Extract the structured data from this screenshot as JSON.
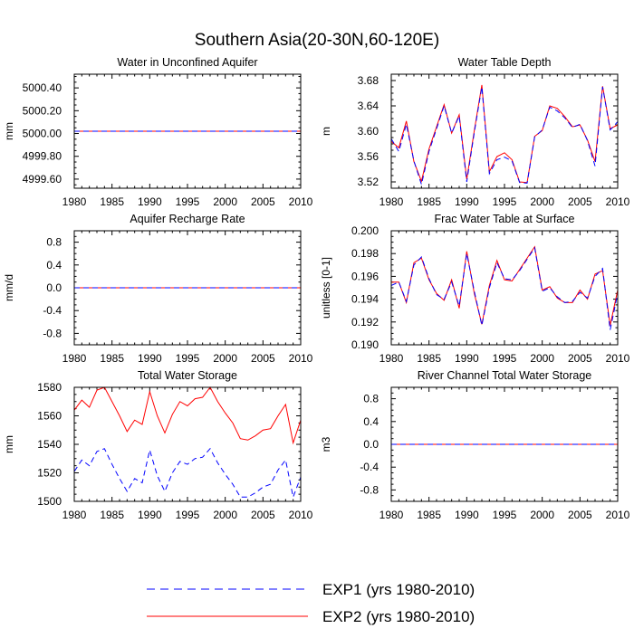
{
  "title": "Southern Asia(20-30N,60-120E)",
  "legend": {
    "exp1": {
      "label": "EXP1 (yrs 1980-2010)",
      "color": "#0000ff"
    },
    "exp2": {
      "label": "EXP2 (yrs 1980-2010)",
      "color": "#ff0000"
    }
  },
  "years": [
    1980,
    1981,
    1982,
    1983,
    1984,
    1985,
    1986,
    1987,
    1988,
    1989,
    1990,
    1991,
    1992,
    1993,
    1994,
    1995,
    1996,
    1997,
    1998,
    1999,
    2000,
    2001,
    2002,
    2003,
    2004,
    2005,
    2006,
    2007,
    2008,
    2009,
    2010
  ],
  "chart_data": [
    {
      "type": "line",
      "title": "Water in Unconfined Aquifer",
      "ylabel": "mm",
      "xlim": [
        1980,
        2010
      ],
      "ylim": [
        4999.52,
        5000.52
      ],
      "yticks": [
        4999.6,
        4999.8,
        5000.0,
        5000.2,
        5000.4
      ],
      "ytick_labels": [
        "4999.60",
        "4999.80",
        "5000.00",
        "5000.20",
        "5000.40"
      ],
      "xticks": [
        1980,
        1985,
        1990,
        1995,
        2000,
        2005,
        2010
      ],
      "series": [
        {
          "name": "EXP1",
          "constant": 5000.02
        },
        {
          "name": "EXP2",
          "constant": 5000.02
        }
      ]
    },
    {
      "type": "line",
      "title": "Water Table Depth",
      "ylabel": "m",
      "xlim": [
        1980,
        2010
      ],
      "ylim": [
        3.51,
        3.69
      ],
      "yticks": [
        3.52,
        3.56,
        3.6,
        3.64,
        3.68
      ],
      "ytick_labels": [
        "3.52",
        "3.56",
        "3.60",
        "3.64",
        "3.68"
      ],
      "xticks": [
        1980,
        1985,
        1990,
        1995,
        2000,
        2005,
        2010
      ],
      "series": [
        {
          "name": "EXP1",
          "values": [
            3.588,
            3.568,
            3.611,
            3.553,
            3.516,
            3.568,
            3.604,
            3.64,
            3.597,
            3.624,
            3.52,
            3.598,
            3.67,
            3.533,
            3.555,
            3.559,
            3.553,
            3.519,
            3.518,
            3.591,
            3.602,
            3.638,
            3.632,
            3.621,
            3.606,
            3.611,
            3.585,
            3.545,
            3.67,
            3.602,
            3.615
          ]
        },
        {
          "name": "EXP2",
          "values": [
            3.584,
            3.574,
            3.616,
            3.552,
            3.521,
            3.572,
            3.607,
            3.642,
            3.597,
            3.626,
            3.524,
            3.601,
            3.673,
            3.536,
            3.56,
            3.566,
            3.555,
            3.52,
            3.519,
            3.592,
            3.601,
            3.64,
            3.636,
            3.623,
            3.607,
            3.61,
            3.586,
            3.552,
            3.671,
            3.604,
            3.61
          ]
        }
      ]
    },
    {
      "type": "line",
      "title": "Aquifer Recharge Rate",
      "ylabel": "mm/d",
      "xlim": [
        1980,
        2010
      ],
      "ylim": [
        -1.0,
        1.0
      ],
      "yticks": [
        -0.8,
        -0.4,
        0.0,
        0.4,
        0.8
      ],
      "ytick_labels": [
        "-0.8",
        "-0.4",
        "0.0",
        "0.4",
        "0.8"
      ],
      "xticks": [
        1980,
        1985,
        1990,
        1995,
        2000,
        2005,
        2010
      ],
      "series": [
        {
          "name": "EXP1",
          "constant": 0.0
        },
        {
          "name": "EXP2",
          "constant": 0.0
        }
      ]
    },
    {
      "type": "line",
      "title": "Frac Water Table at Surface",
      "ylabel": "unitless [0-1]",
      "xlim": [
        1980,
        2010
      ],
      "ylim": [
        0.19,
        0.2
      ],
      "yticks": [
        0.19,
        0.192,
        0.194,
        0.196,
        0.198,
        0.2
      ],
      "ytick_labels": [
        "0.190",
        "0.192",
        "0.194",
        "0.196",
        "0.198",
        "0.200"
      ],
      "xticks": [
        1980,
        1985,
        1990,
        1995,
        2000,
        2005,
        2010
      ],
      "series": [
        {
          "name": "EXP1",
          "values": [
            0.1952,
            0.1955,
            0.1938,
            0.197,
            0.1977,
            0.1958,
            0.1944,
            0.194,
            0.1955,
            0.1934,
            0.198,
            0.1947,
            0.1917,
            0.195,
            0.1972,
            0.1958,
            0.1957,
            0.1965,
            0.1975,
            0.1985,
            0.1947,
            0.195,
            0.1942,
            0.1937,
            0.1938,
            0.1946,
            0.1941,
            0.196,
            0.1967,
            0.1913,
            0.1945
          ]
        },
        {
          "name": "EXP2",
          "values": [
            0.1955,
            0.1955,
            0.1937,
            0.1972,
            0.1976,
            0.1957,
            0.1945,
            0.1939,
            0.1957,
            0.1932,
            0.1982,
            0.1945,
            0.1918,
            0.1952,
            0.1974,
            0.1957,
            0.1956,
            0.1966,
            0.1976,
            0.1986,
            0.1948,
            0.1951,
            0.1941,
            0.1937,
            0.1937,
            0.1948,
            0.194,
            0.1962,
            0.1965,
            0.1917,
            0.1948
          ]
        }
      ]
    },
    {
      "type": "line",
      "title": "Total Water Storage",
      "ylabel": "mm",
      "xlim": [
        1980,
        2010
      ],
      "ylim": [
        1500,
        1580
      ],
      "yticks": [
        1500,
        1520,
        1540,
        1560,
        1580
      ],
      "ytick_labels": [
        "1500",
        "1520",
        "1540",
        "1560",
        "1580"
      ],
      "xticks": [
        1980,
        1985,
        1990,
        1995,
        2000,
        2005,
        2010
      ],
      "series": [
        {
          "name": "EXP1",
          "values": [
            1521,
            1529,
            1525,
            1535,
            1537,
            1526,
            1516,
            1507,
            1516,
            1513,
            1536,
            1518,
            1507,
            1520,
            1528,
            1526,
            1530,
            1531,
            1537,
            1527,
            1519,
            1512,
            1503,
            1503,
            1506,
            1510,
            1512,
            1522,
            1529,
            1503,
            1517
          ]
        },
        {
          "name": "EXP2",
          "values": [
            1564,
            1571,
            1566,
            1578,
            1580,
            1570,
            1560,
            1549,
            1557,
            1554,
            1577,
            1560,
            1548,
            1561,
            1570,
            1567,
            1572,
            1573,
            1580,
            1570,
            1562,
            1555,
            1544,
            1543,
            1546,
            1550,
            1551,
            1560,
            1568,
            1541,
            1557
          ]
        }
      ]
    },
    {
      "type": "line",
      "title": "River Channel Total Water Storage",
      "ylabel": "m3",
      "xlim": [
        1980,
        2010
      ],
      "ylim": [
        -1.0,
        1.0
      ],
      "yticks": [
        -0.8,
        -0.4,
        0.0,
        0.4,
        0.8
      ],
      "ytick_labels": [
        "-0.8",
        "-0.4",
        "0.0",
        "0.4",
        "0.8"
      ],
      "xticks": [
        1980,
        1985,
        1990,
        1995,
        2000,
        2005,
        2010
      ],
      "series": [
        {
          "name": "EXP1",
          "constant": 0.0
        },
        {
          "name": "EXP2",
          "constant": 0.0
        }
      ]
    }
  ]
}
